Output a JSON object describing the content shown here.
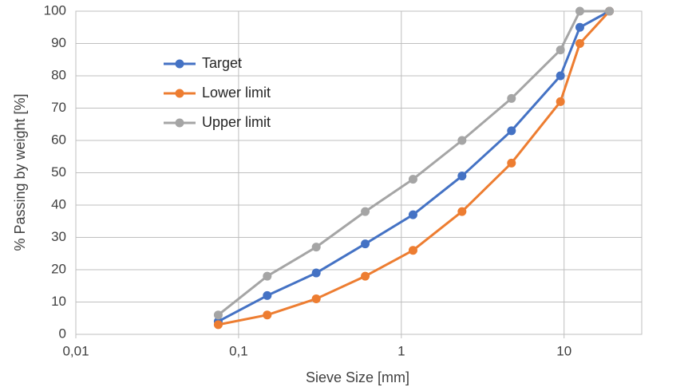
{
  "chart_data": {
    "type": "line",
    "x_label": "Sieve Size [mm]",
    "y_label": "% Passing by weight [%]",
    "x": [
      0.075,
      0.15,
      0.3,
      0.6,
      1.18,
      2.36,
      4.75,
      9.5,
      12.5,
      19
    ],
    "series": [
      {
        "name": "Target",
        "color": "#4472c4",
        "values": [
          4,
          12,
          19,
          28,
          37,
          49,
          63,
          80,
          95,
          100
        ]
      },
      {
        "name": "Lower limit",
        "color": "#ed7d31",
        "values": [
          3,
          6,
          11,
          18,
          26,
          38,
          53,
          72,
          90,
          100
        ]
      },
      {
        "name": "Upper limit",
        "color": "#a5a5a5",
        "values": [
          6,
          18,
          27,
          38,
          48,
          60,
          73,
          88,
          100,
          100
        ]
      }
    ],
    "xscale": "log",
    "xlim": [
      0.01,
      30
    ],
    "xticks": [
      {
        "value": 0.01,
        "label": "0,01"
      },
      {
        "value": 0.1,
        "label": "0,1"
      },
      1,
      10
    ],
    "ylim": [
      0,
      100
    ],
    "yticks": [
      0,
      10,
      20,
      30,
      40,
      50,
      60,
      70,
      80,
      90,
      100
    ],
    "grid": true,
    "legend": "upper left"
  }
}
